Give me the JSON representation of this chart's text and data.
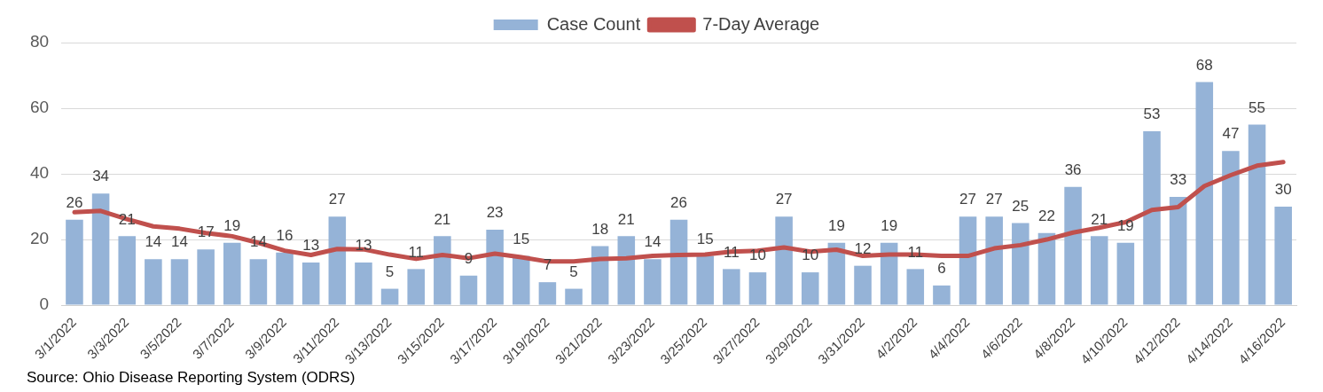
{
  "chart_data": {
    "type": "bar",
    "categories": [
      "3/1/2022",
      null,
      "3/3/2022",
      null,
      "3/5/2022",
      null,
      "3/7/2022",
      null,
      "3/9/2022",
      null,
      "3/11/2022",
      null,
      "3/13/2022",
      null,
      "3/15/2022",
      null,
      "3/17/2022",
      null,
      "3/19/2022",
      null,
      "3/21/2022",
      null,
      "3/23/2022",
      null,
      "3/25/2022",
      null,
      "3/27/2022",
      null,
      "3/29/2022",
      null,
      "3/31/2022",
      null,
      "4/2/2022",
      null,
      "4/4/2022",
      null,
      "4/6/2022",
      null,
      "4/8/2022",
      null,
      "4/10/2022",
      null,
      "4/12/2022",
      null,
      "4/14/2022",
      null,
      "4/16/2022"
    ],
    "series": [
      {
        "name": "Case Count",
        "color": "#95b3d7",
        "values": [
          26,
          34,
          21,
          14,
          14,
          17,
          19,
          14,
          16,
          13,
          27,
          13,
          5,
          11,
          21,
          9,
          23,
          15,
          7,
          5,
          18,
          21,
          14,
          26,
          15,
          11,
          10,
          27,
          10,
          19,
          12,
          19,
          11,
          6,
          27,
          27,
          25,
          22,
          36,
          21,
          19,
          53,
          33,
          68,
          47,
          55,
          30
        ],
        "value_labels": [
          "26",
          "34",
          "21",
          "14",
          "14",
          "17",
          "19",
          "14",
          "16",
          "13",
          "27",
          "13",
          "5",
          "11",
          "21",
          "9",
          "23",
          "15",
          "7",
          "5",
          "18",
          "21",
          "14",
          "26",
          "15",
          "11",
          "10",
          "27",
          "10",
          "19",
          "12",
          "19",
          "11",
          "6",
          "27",
          "27",
          "25",
          "22",
          "36",
          "21",
          "19",
          "53",
          "33",
          "68",
          "47",
          "55",
          "30"
        ]
      },
      {
        "name": "7-Day Average",
        "type": "line",
        "color": "#c0504d",
        "values": [
          28.3,
          28.7,
          26.2,
          24,
          23.3,
          22,
          21,
          19,
          16.6,
          15.3,
          17.1,
          17,
          15.4,
          14.1,
          15.3,
          14.3,
          15.7,
          14.6,
          13.3,
          13.3,
          14.1,
          14.3,
          15,
          15.3,
          15.4,
          16.3,
          16.6,
          17.6,
          16.3,
          16.9,
          15,
          15.4,
          15.4,
          15,
          15,
          17.3,
          18.3,
          20,
          22.1,
          23.6,
          25.3,
          29,
          29.9,
          36.3,
          39.6,
          42.5,
          43.6
        ]
      }
    ],
    "ylim": [
      0,
      80
    ],
    "yticks": [
      0,
      20,
      40,
      60,
      80
    ],
    "grid": "y",
    "legend": "top",
    "annotations": [
      "Source:  Ohio Disease Reporting System (ODRS)"
    ]
  }
}
